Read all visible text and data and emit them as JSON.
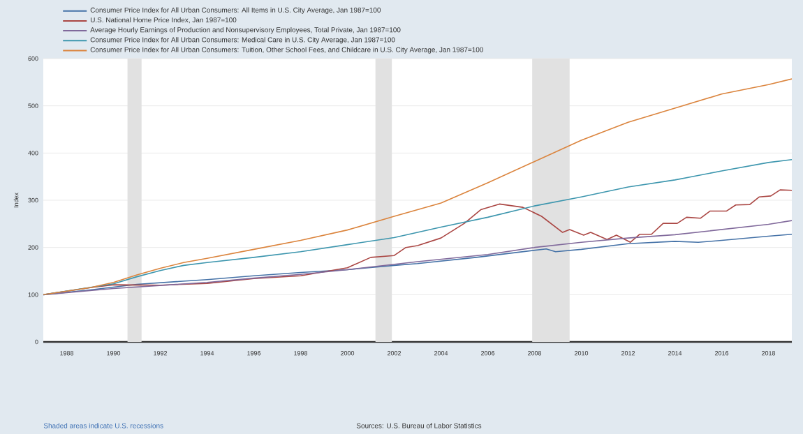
{
  "chart_data": {
    "type": "line",
    "ylabel": "Index",
    "xlim": [
      1987,
      2019
    ],
    "ylim": [
      0,
      600
    ],
    "xticks": [
      1988,
      1990,
      1992,
      1994,
      1996,
      1998,
      2000,
      2002,
      2004,
      2006,
      2008,
      2010,
      2012,
      2014,
      2016,
      2018
    ],
    "yticks": [
      0,
      100,
      200,
      300,
      400,
      500,
      600
    ],
    "grid": "y",
    "legend": "top left",
    "bands": [
      {
        "axis": "x",
        "from": 1990.6,
        "to": 1991.2,
        "color": "#e1e1e1"
      },
      {
        "axis": "x",
        "from": 2001.2,
        "to": 2001.9,
        "color": "#e1e1e1"
      },
      {
        "axis": "x",
        "from": 2007.9,
        "to": 2009.5,
        "color": "#e1e1e1"
      }
    ],
    "annotations": [
      "Shaded areas indicate U.S. recessions",
      "Sources: U.S. Bureau of Labor Statistics"
    ],
    "series": [
      {
        "name": "Consumer Price Index for All Urban Consumers: All Items in U.S. City Average, Jan 1987=100",
        "color": "#4572a7",
        "x": [
          1987,
          1989,
          1991,
          1994,
          1996,
          1998,
          2000,
          2002,
          2003,
          2005.5,
          2008.5,
          2008.9,
          2010,
          2012,
          2014,
          2015,
          2016,
          2018,
          2019
        ],
        "values": [
          100,
          110,
          122,
          132,
          140,
          147,
          153,
          162,
          166,
          179,
          197,
          191,
          196,
          208,
          213,
          211,
          215,
          224,
          228
        ]
      },
      {
        "name": "U.S. National Home Price Index, Jan 1987=100",
        "color": "#aa4643",
        "x": [
          1987,
          1989,
          1990,
          1992,
          1994,
          1996,
          1998,
          2000,
          2001,
          2002,
          2002.5,
          2003,
          2004,
          2005,
          2005.7,
          2006.5,
          2007.5,
          2008.3,
          2009.2,
          2009.5,
          2010.1,
          2010.4,
          2011.1,
          2011.5,
          2012.1,
          2012.5,
          2013,
          2013.5,
          2014.1,
          2014.5,
          2015.1,
          2015.5,
          2016.2,
          2016.6,
          2017.2,
          2017.6,
          2018.1,
          2018.5,
          2019
        ],
        "values": [
          100,
          115,
          121,
          120,
          124,
          134,
          140,
          157,
          179,
          183,
          200,
          204,
          220,
          251,
          280,
          292,
          285,
          266,
          232,
          238,
          226,
          232,
          217,
          226,
          211,
          228,
          228,
          251,
          251,
          264,
          262,
          277,
          277,
          290,
          291,
          307,
          309,
          322,
          321
        ]
      },
      {
        "name": "Average Hourly Earnings of Production and Nonsupervisory Employees, Total Private, Jan 1987=100",
        "color": "#80699b",
        "x": [
          1987,
          1990,
          1994,
          1996,
          1998,
          2000,
          2003,
          2006,
          2008,
          2010,
          2012,
          2014,
          2016,
          2018,
          2019
        ],
        "values": [
          100,
          113,
          126,
          135,
          143,
          153,
          170,
          185,
          200,
          211,
          220,
          227,
          238,
          249,
          257
        ]
      },
      {
        "name": "Consumer Price Index for All Urban Consumers: Medical Care in U.S. City Average, Jan 1987=100",
        "color": "#3d96ae",
        "x": [
          1987,
          1990,
          1991,
          1992,
          1993,
          1994,
          1996,
          1998,
          2000,
          2002,
          2003,
          2004,
          2006,
          2008,
          2010,
          2012,
          2014,
          2016,
          2018,
          2019
        ],
        "values": [
          100,
          123,
          138,
          151,
          162,
          168,
          179,
          191,
          206,
          221,
          232,
          243,
          264,
          288,
          307,
          328,
          343,
          362,
          380,
          386
        ]
      },
      {
        "name": "Consumer Price Index for All Urban Consumers: Tuition, Other School Fees, and Childcare in U.S. City Average, Jan 1987=100",
        "color": "#db843d",
        "x": [
          1987,
          1989,
          1990,
          1991,
          1992,
          1993,
          1994,
          1996,
          1998,
          2000,
          2002,
          2003,
          2004,
          2006,
          2008,
          2010,
          2012,
          2014,
          2016,
          2018,
          2019
        ],
        "values": [
          100,
          115,
          126,
          142,
          156,
          168,
          177,
          196,
          215,
          237,
          266,
          280,
          294,
          337,
          382,
          427,
          465,
          495,
          525,
          545,
          557
        ]
      }
    ]
  }
}
